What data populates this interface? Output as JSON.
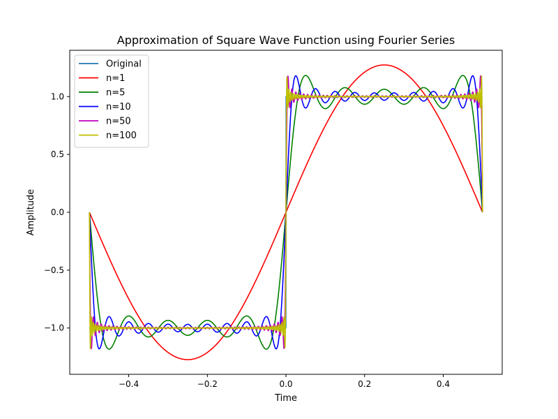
{
  "chart_data": {
    "type": "line",
    "title": "Approximation of Square Wave Function using Fourier Series",
    "xlabel": "Time",
    "ylabel": "Amplitude",
    "xlim": [
      -0.55,
      0.55
    ],
    "ylim": [
      -1.4,
      1.4
    ],
    "x_range": [
      -0.5,
      0.5
    ],
    "xticks": [
      -0.4,
      -0.2,
      0.0,
      0.2,
      0.4
    ],
    "xtick_labels": [
      "−0.4",
      "−0.2",
      "0.0",
      "0.2",
      "0.4"
    ],
    "yticks": [
      -1.0,
      -0.5,
      0.0,
      0.5,
      1.0
    ],
    "ytick_labels": [
      "−1.0",
      "−0.5",
      "0.0",
      "0.5",
      "1.0"
    ],
    "grid": false,
    "legend_position": "top-left",
    "series": [
      {
        "name": "Original",
        "color": "#1f77b4",
        "kind": "square",
        "terms": 0
      },
      {
        "name": "n=1",
        "color": "#ff0000",
        "kind": "fourier",
        "terms": 1
      },
      {
        "name": "n=5",
        "color": "#008000",
        "kind": "fourier",
        "terms": 5
      },
      {
        "name": "n=10",
        "color": "#0000ff",
        "kind": "fourier",
        "terms": 10
      },
      {
        "name": "n=50",
        "color": "#bf00bf",
        "kind": "fourier",
        "terms": 50
      },
      {
        "name": "n=100",
        "color": "#bfbf00",
        "kind": "fourier",
        "terms": 100
      }
    ]
  }
}
